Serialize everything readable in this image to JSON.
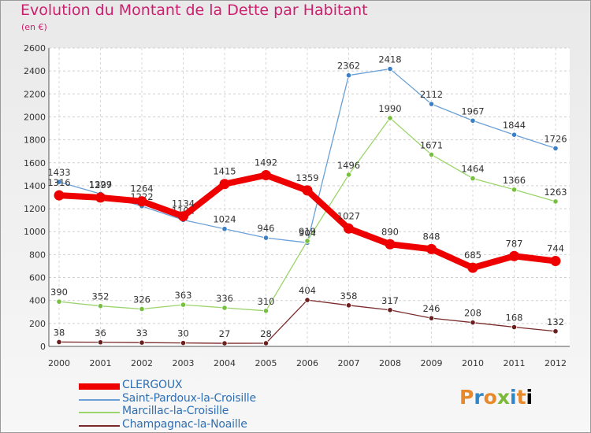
{
  "header": {
    "title": "Evolution du Montant de la Dette par Habitant",
    "subtitle": "(en €)"
  },
  "logo": {
    "text": "Proxiti"
  },
  "chart_data": {
    "type": "line",
    "x": [
      "2000",
      "2001",
      "2002",
      "2003",
      "2004",
      "2005",
      "2006",
      "2007",
      "2008",
      "2009",
      "2010",
      "2011",
      "2012"
    ],
    "ylim": [
      0,
      2600
    ],
    "yticks": [
      "0",
      "200",
      "400",
      "600",
      "800",
      "1000",
      "1200",
      "1400",
      "1600",
      "1800",
      "2000",
      "2200",
      "2400",
      "2600"
    ],
    "grid": true,
    "legend_position": "bottom-left",
    "series": [
      {
        "name": "Saint-Pardoux-la-Croisille",
        "color": "#6aa0d6",
        "marker": "#3b7fc4",
        "values": [
          1433,
          1329,
          1222,
          1102,
          1024,
          946,
          904,
          2362,
          2418,
          2112,
          1967,
          1844,
          1726
        ],
        "labels": [
          "1433",
          "1329",
          "1222",
          "1102",
          "1024",
          "946",
          "904",
          "2362",
          "2418",
          "2112",
          "1967",
          "1844",
          "1726"
        ]
      },
      {
        "name": "Marcillac-la-Croisille",
        "color": "#9ad46a",
        "marker": "#76c03e",
        "values": [
          390,
          352,
          326,
          363,
          336,
          310,
          919,
          1496,
          1990,
          1671,
          1464,
          1366,
          1263
        ],
        "labels": [
          "390",
          "352",
          "326",
          "363",
          "336",
          "310",
          "919",
          "1496",
          "1990",
          "1671",
          "1464",
          "1366",
          "1263"
        ]
      },
      {
        "name": "Champagnac-la-Noaille",
        "color": "#7a2a2a",
        "marker": "#6b1e1e",
        "values": [
          38,
          36,
          33,
          30,
          27,
          28,
          404,
          358,
          317,
          246,
          208,
          168,
          132
        ],
        "labels": [
          "38",
          "36",
          "33",
          "30",
          "27",
          "28",
          "404",
          "358",
          "317",
          "246",
          "208",
          "168",
          "132"
        ]
      },
      {
        "name": "CLERGOUX",
        "color": "#ee0000",
        "marker": "#ee0000",
        "thick": true,
        "values": [
          1316,
          1297,
          1264,
          1134,
          1415,
          1492,
          1359,
          1027,
          890,
          848,
          685,
          787,
          744
        ],
        "labels": [
          "1316",
          "1297",
          "1264",
          "1134",
          "1415",
          "1492",
          "1359",
          "1027",
          "890",
          "848",
          "685",
          "787",
          "744"
        ]
      }
    ]
  },
  "legend": [
    {
      "name": "CLERGOUX",
      "color": "#ee0000",
      "thick": true
    },
    {
      "name": "Saint-Pardoux-la-Croisille",
      "color": "#6aa0d6"
    },
    {
      "name": "Marcillac-la-Croisille",
      "color": "#9ad46a"
    },
    {
      "name": "Champagnac-la-Noaille",
      "color": "#7a2a2a"
    }
  ]
}
